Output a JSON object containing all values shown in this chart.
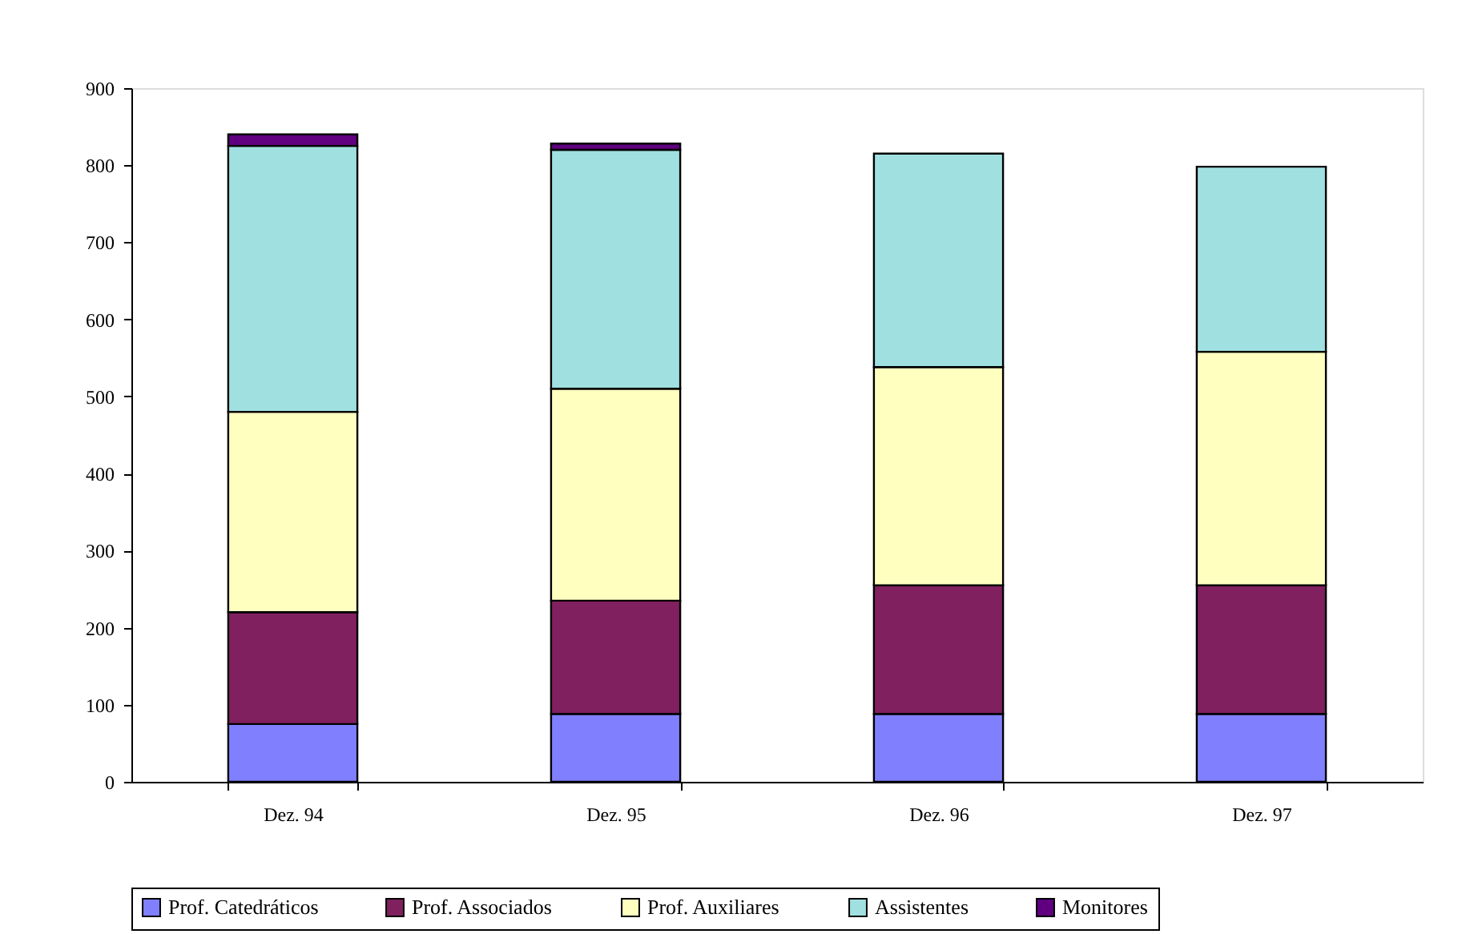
{
  "chart_data": {
    "type": "bar",
    "stacked": true,
    "categories": [
      "Dez. 94",
      "Dez. 95",
      "Dez. 96",
      "Dez. 97"
    ],
    "series": [
      {
        "name": "Prof. Catedráticos",
        "color": "#8080ff",
        "values": [
          75,
          88,
          88,
          88
        ]
      },
      {
        "name": "Prof. Associados",
        "color": "#80205f",
        "values": [
          145,
          147,
          167,
          167
        ]
      },
      {
        "name": "Prof. Auxiliares",
        "color": "#ffffc0",
        "values": [
          260,
          275,
          283,
          303
        ]
      },
      {
        "name": "Assistentes",
        "color": "#a0e0e0",
        "values": [
          345,
          310,
          277,
          240
        ]
      },
      {
        "name": "Monitores",
        "color": "#600080",
        "values": [
          15,
          8,
          null,
          null
        ]
      }
    ],
    "ylim": [
      0,
      900
    ],
    "yticks": [
      0,
      100,
      200,
      300,
      400,
      500,
      600,
      700,
      800,
      900
    ],
    "grid": false,
    "legend": "bottom"
  }
}
